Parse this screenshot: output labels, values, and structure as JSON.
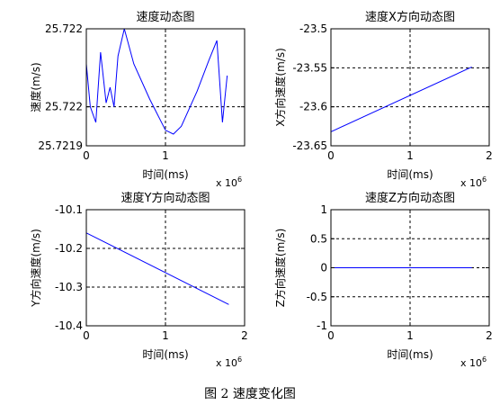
{
  "caption": "图 2  速度变化图",
  "chart_data": [
    {
      "type": "line",
      "title": "速度动态图",
      "xlabel": "时间(ms)",
      "ylabel": "速度(m/s)",
      "x_exponent_label": "x 10",
      "x_exponent": "6",
      "xlim": [
        0,
        2
      ],
      "ylim": [
        25.7219,
        25.7222
      ],
      "xticks": [
        0,
        1
      ],
      "xtick_labels": [
        "0",
        "1"
      ],
      "yticks": [
        25.7219,
        25.722,
        25.7222
      ],
      "ytick_labels": [
        "25.7219",
        "25.722",
        "25.722"
      ],
      "grid": true,
      "series": [
        {
          "color": "#0000ff",
          "x": [
            0.0,
            0.05,
            0.12,
            0.18,
            0.25,
            0.3,
            0.35,
            0.4,
            0.48,
            0.6,
            0.8,
            1.0,
            1.1,
            1.2,
            1.4,
            1.55,
            1.65,
            1.72,
            1.78
          ],
          "y": [
            25.72211,
            25.722,
            25.72196,
            25.72214,
            25.72201,
            25.72205,
            25.722,
            25.72213,
            25.7222,
            25.72211,
            25.72202,
            25.72194,
            25.72193,
            25.72195,
            25.72204,
            25.72212,
            25.72217,
            25.72196,
            25.72208
          ]
        }
      ]
    },
    {
      "type": "line",
      "title": "速度X方向动态图",
      "xlabel": "时间(ms)",
      "ylabel": "X方向速度(m/s)",
      "x_exponent_label": "x 10",
      "x_exponent": "6",
      "xlim": [
        0,
        2
      ],
      "ylim": [
        -23.65,
        -23.5
      ],
      "xticks": [
        0,
        1,
        2
      ],
      "xtick_labels": [
        "0",
        "1",
        "2"
      ],
      "yticks": [
        -23.65,
        -23.6,
        -23.55,
        -23.5
      ],
      "ytick_labels": [
        "-23.65",
        "-23.6",
        "-23.55",
        "-23.5"
      ],
      "grid": true,
      "series": [
        {
          "color": "#0000ff",
          "x": [
            0,
            1.78
          ],
          "y": [
            -23.632,
            -23.549
          ]
        }
      ]
    },
    {
      "type": "line",
      "title": "速度Y方向动态图",
      "xlabel": "时间(ms)",
      "ylabel": "Y方向速度(m/s)",
      "x_exponent_label": "x 10",
      "x_exponent": "6",
      "xlim": [
        0,
        2
      ],
      "ylim": [
        -10.4,
        -10.1
      ],
      "xticks": [
        0,
        1,
        2
      ],
      "xtick_labels": [
        "0",
        "1",
        "2"
      ],
      "yticks": [
        -10.4,
        -10.3,
        -10.2,
        -10.1
      ],
      "ytick_labels": [
        "-10.4",
        "-10.3",
        "-10.2",
        "-10.1"
      ],
      "grid": true,
      "series": [
        {
          "color": "#0000ff",
          "x": [
            0,
            1.8
          ],
          "y": [
            -10.16,
            -10.345
          ]
        }
      ]
    },
    {
      "type": "line",
      "title": "速度Z方向动态图",
      "xlabel": "时间(ms)",
      "ylabel": "Z方向速度(m/s)",
      "x_exponent_label": "x 10",
      "x_exponent": "6",
      "xlim": [
        0,
        2
      ],
      "ylim": [
        -1,
        1
      ],
      "xticks": [
        0,
        1,
        2
      ],
      "xtick_labels": [
        "0",
        "1",
        "2"
      ],
      "yticks": [
        -1,
        -0.5,
        0,
        0.5,
        1
      ],
      "ytick_labels": [
        "-1",
        "-0.5",
        "0",
        "0.5",
        "1"
      ],
      "grid": true,
      "series": [
        {
          "color": "#0000ff",
          "x": [
            0,
            1.78
          ],
          "y": [
            0,
            0
          ]
        }
      ]
    }
  ]
}
